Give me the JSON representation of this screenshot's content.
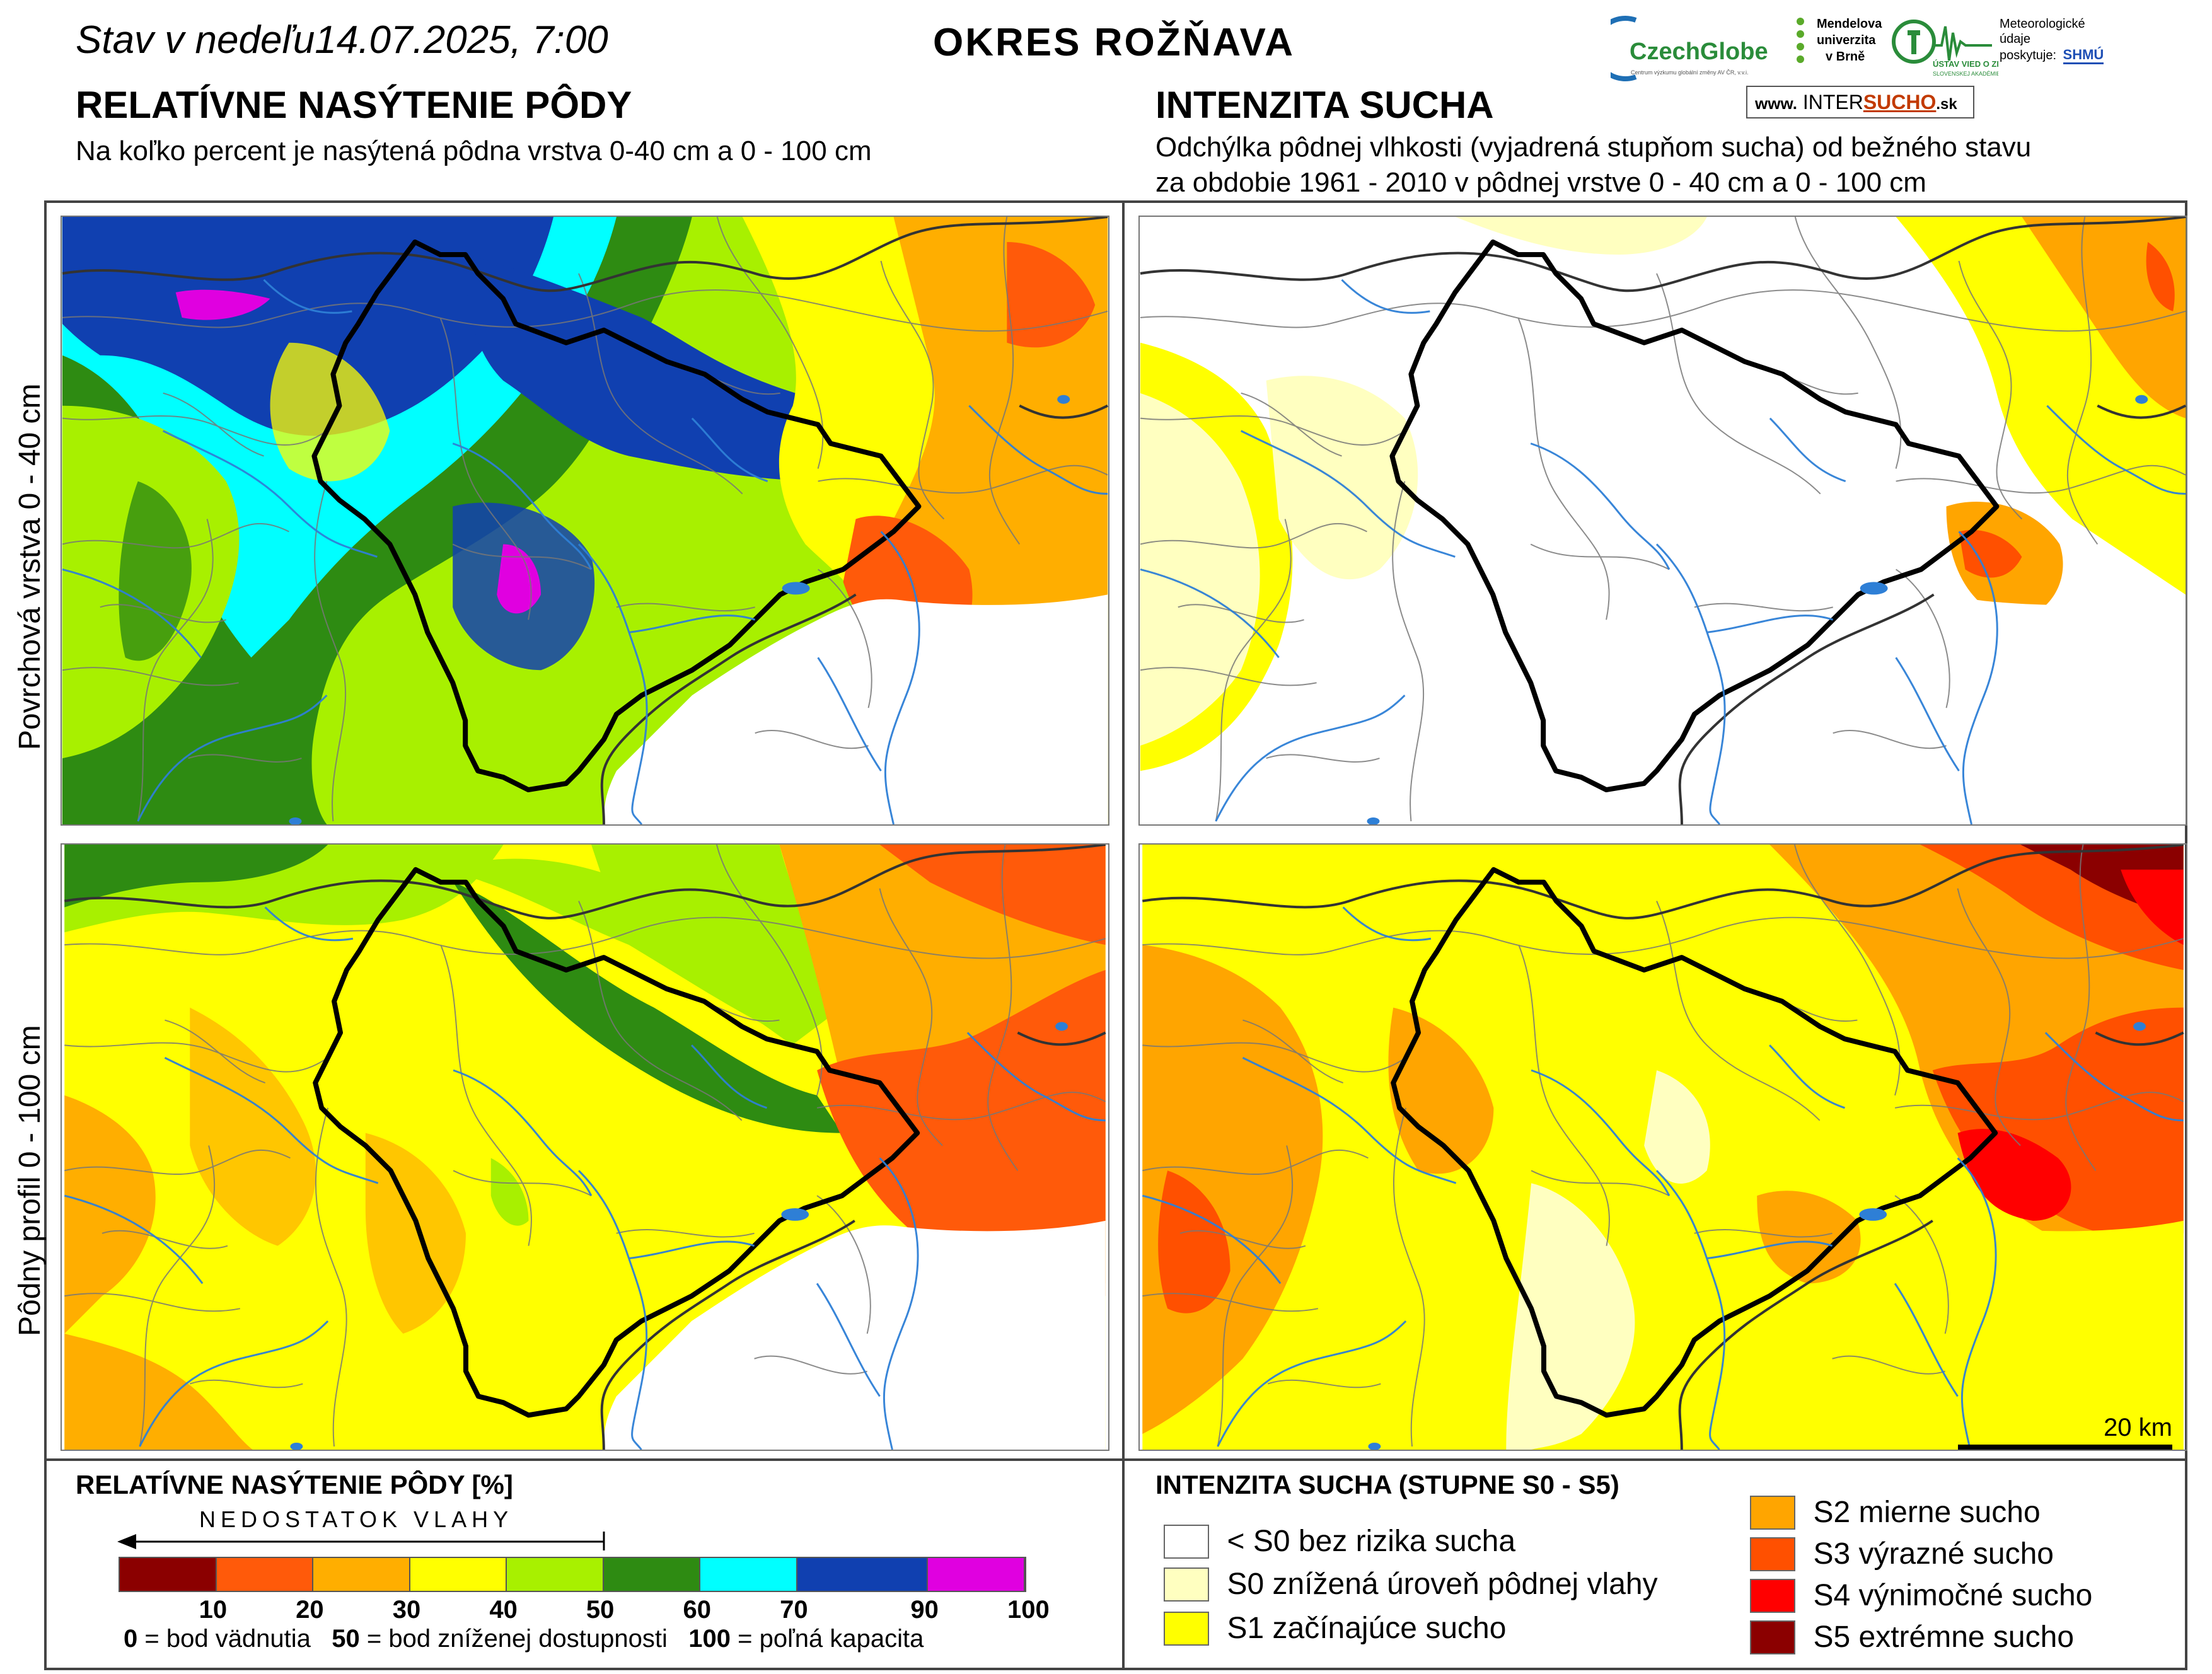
{
  "header": {
    "date_line": "Stav v nedeľu14.07.2025, 7:00",
    "district": "OKRES ROŽŇAVA"
  },
  "left_section": {
    "title": "RELATÍVNE NASÝTENIE PÔDY",
    "subtitle": "Na koľko percent je nasýtená pôdna vrstva 0-40 cm a 0 - 100 cm"
  },
  "right_section": {
    "title": "INTENZITA SUCHA",
    "subtitle_line1": "Odchýlka pôdnej vlhkosti (vyjadrená stupňom sucha) od bežného stavu",
    "subtitle_line2": "za obdobie 1961 - 2010 v pôdnej vrstve 0 - 40 cm a 0 - 100 cm"
  },
  "row_labels": {
    "top": "Povrchová vrstva 0 - 40 cm",
    "bottom": "Pôdny profil 0 - 100 cm"
  },
  "logos": {
    "czechglobe": "CzechGlobe",
    "czechglobe_sub": "Centrum výzkumu globální změny AV ČR, v.v.i.",
    "mendel_1": "Mendelova",
    "mendel_2": "univerzita",
    "mendel_3": "v Brně",
    "ustav": "ÚSTAV VIED O ZEMI",
    "ustav_sub": "SLOVENSKEJ AKADÉMIE VIED",
    "meteo_1": "Meteorologické",
    "meteo_2": "údaje",
    "meteo_3": "poskytuje:",
    "shmu": "SHMÚ",
    "intersucho_prefix": "www.",
    "intersucho_a": "INTER",
    "intersucho_b": "SUCHO",
    "intersucho_c": ".sk"
  },
  "scale_bar": {
    "label": "20 km"
  },
  "legend_saturation": {
    "title": "RELATÍVNE NASÝTENIE PÔDY [%]",
    "arrow_label": "NEDOSTATOK VLAHY",
    "bins": [
      {
        "from": 0,
        "to": 10,
        "color": "#8b0000"
      },
      {
        "from": 10,
        "to": 20,
        "color": "#ff5a0a"
      },
      {
        "from": 20,
        "to": 30,
        "color": "#ffae00"
      },
      {
        "from": 30,
        "to": 40,
        "color": "#ffff00"
      },
      {
        "from": 40,
        "to": 50,
        "color": "#a8f000"
      },
      {
        "from": 50,
        "to": 60,
        "color": "#2e8b12"
      },
      {
        "from": 60,
        "to": 70,
        "color": "#00ffff"
      },
      {
        "from": 70,
        "to": 90,
        "color": "#1040b0"
      },
      {
        "from": 90,
        "to": 100,
        "color": "#e000e0"
      }
    ],
    "ticks": [
      "10",
      "20",
      "30",
      "40",
      "50",
      "60",
      "70",
      "90",
      "100"
    ],
    "note_0_val": "0",
    "note_0_text": " = bod vädnutia",
    "note_50_val": "50",
    "note_50_text": " = bod zníženej dostupnosti",
    "note_100_val": "100",
    "note_100_text": " = poľná kapacita"
  },
  "legend_drought": {
    "title": "INTENZITA SUCHA (STUPNE S0 - S5)",
    "items": [
      {
        "label": "< S0 bez rizika sucha",
        "color": "#ffffff"
      },
      {
        "label": "S0 znížená úroveň pôdnej vlahy",
        "color": "#ffffc0"
      },
      {
        "label": "S1 začínajúce sucho",
        "color": "#ffff00"
      },
      {
        "label": "S2 mierne sucho",
        "color": "#ffa500"
      },
      {
        "label": "S3 výrazné sucho",
        "color": "#ff5000"
      },
      {
        "label": "S4 výnimočné sucho",
        "color": "#ff0000"
      },
      {
        "label": "S5 extrémne sucho",
        "color": "#8b0000"
      }
    ]
  }
}
